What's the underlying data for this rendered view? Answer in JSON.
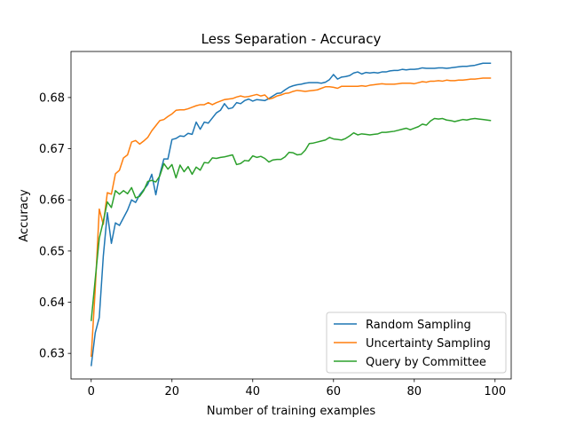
{
  "chart_data": {
    "type": "line",
    "title": "Less Separation - Accuracy",
    "xlabel": "Number of training examples",
    "ylabel": "Accuracy",
    "xlim": [
      -5,
      104
    ],
    "ylim": [
      0.625,
      0.689
    ],
    "xticks": [
      0,
      20,
      40,
      60,
      80,
      100
    ],
    "yticks": [
      0.63,
      0.64,
      0.65,
      0.66,
      0.67,
      0.68
    ],
    "grid": false,
    "legend_position": "lower-right",
    "x": [
      0,
      1,
      2,
      3,
      4,
      5,
      6,
      7,
      8,
      9,
      10,
      11,
      12,
      13,
      14,
      15,
      16,
      17,
      18,
      19,
      20,
      21,
      22,
      23,
      24,
      25,
      26,
      27,
      28,
      29,
      30,
      31,
      32,
      33,
      34,
      35,
      36,
      37,
      38,
      39,
      40,
      41,
      42,
      43,
      44,
      45,
      46,
      47,
      48,
      49,
      50,
      51,
      52,
      53,
      54,
      55,
      56,
      57,
      58,
      59,
      60,
      61,
      62,
      63,
      64,
      65,
      66,
      67,
      68,
      69,
      70,
      71,
      72,
      73,
      74,
      75,
      76,
      77,
      78,
      79,
      80,
      81,
      82,
      83,
      84,
      85,
      86,
      87,
      88,
      89,
      90,
      91,
      92,
      93,
      94,
      95,
      96,
      97,
      98,
      99
    ],
    "series": [
      {
        "name": "Random Sampling",
        "color": "#1f77b4",
        "values": [
          0.6275,
          0.634,
          0.637,
          0.649,
          0.6575,
          0.6515,
          0.6555,
          0.655,
          0.6565,
          0.658,
          0.66,
          0.6595,
          0.661,
          0.662,
          0.663,
          0.665,
          0.661,
          0.665,
          0.668,
          0.668,
          0.6718,
          0.672,
          0.6725,
          0.6724,
          0.673,
          0.6728,
          0.6752,
          0.6738,
          0.6752,
          0.675,
          0.676,
          0.677,
          0.6775,
          0.6788,
          0.6778,
          0.678,
          0.679,
          0.6788,
          0.6794,
          0.6797,
          0.6793,
          0.6796,
          0.6795,
          0.6794,
          0.6798,
          0.6803,
          0.6808,
          0.6809,
          0.6815,
          0.682,
          0.6823,
          0.6825,
          0.6826,
          0.6828,
          0.6829,
          0.6829,
          0.6829,
          0.6828,
          0.683,
          0.6835,
          0.6845,
          0.6836,
          0.684,
          0.6841,
          0.6843,
          0.6848,
          0.685,
          0.6846,
          0.6849,
          0.6848,
          0.6849,
          0.6848,
          0.685,
          0.685,
          0.6852,
          0.6853,
          0.6853,
          0.6855,
          0.6854,
          0.6855,
          0.6855,
          0.6856,
          0.6858,
          0.6857,
          0.6857,
          0.6857,
          0.6858,
          0.6858,
          0.6857,
          0.6858,
          0.6859,
          0.686,
          0.6861,
          0.6861,
          0.6862,
          0.6863,
          0.6865,
          0.6867,
          0.6867,
          0.6867
        ]
      },
      {
        "name": "Uncertainty Sampling",
        "color": "#ff7f0e",
        "values": [
          0.6293,
          0.6425,
          0.6582,
          0.6552,
          0.6614,
          0.6611,
          0.6651,
          0.6658,
          0.6682,
          0.6688,
          0.6713,
          0.6716,
          0.6709,
          0.6715,
          0.6722,
          0.6735,
          0.6745,
          0.6755,
          0.6757,
          0.6763,
          0.6768,
          0.6775,
          0.6776,
          0.6776,
          0.6778,
          0.6781,
          0.6784,
          0.6786,
          0.6786,
          0.679,
          0.6786,
          0.679,
          0.6793,
          0.6796,
          0.6797,
          0.6798,
          0.6801,
          0.6803,
          0.6801,
          0.6802,
          0.6804,
          0.6806,
          0.6803,
          0.6805,
          0.6797,
          0.6799,
          0.6803,
          0.6805,
          0.6808,
          0.6809,
          0.6812,
          0.6814,
          0.6813,
          0.6812,
          0.6813,
          0.6814,
          0.6815,
          0.6818,
          0.6821,
          0.6821,
          0.682,
          0.6818,
          0.6822,
          0.6822,
          0.6822,
          0.6822,
          0.6822,
          0.6823,
          0.6822,
          0.6824,
          0.6825,
          0.6826,
          0.6827,
          0.6826,
          0.6826,
          0.6826,
          0.6827,
          0.6828,
          0.6828,
          0.6828,
          0.6827,
          0.6829,
          0.6831,
          0.683,
          0.6832,
          0.6832,
          0.6833,
          0.6832,
          0.6834,
          0.6833,
          0.6833,
          0.6834,
          0.6834,
          0.6835,
          0.6836,
          0.6836,
          0.6837,
          0.6838,
          0.6838,
          0.6838
        ]
      },
      {
        "name": "Query by Committee",
        "color": "#2ca02c",
        "values": [
          0.6363,
          0.6445,
          0.6525,
          0.6558,
          0.6596,
          0.6585,
          0.6618,
          0.6611,
          0.6618,
          0.6612,
          0.6624,
          0.6604,
          0.6607,
          0.6618,
          0.6636,
          0.6638,
          0.6635,
          0.6647,
          0.6671,
          0.666,
          0.6669,
          0.6643,
          0.6668,
          0.6655,
          0.6665,
          0.665,
          0.6664,
          0.6658,
          0.6673,
          0.6672,
          0.6682,
          0.6681,
          0.6683,
          0.6684,
          0.6686,
          0.6688,
          0.6669,
          0.6671,
          0.6677,
          0.6676,
          0.6686,
          0.6683,
          0.6685,
          0.6681,
          0.6674,
          0.6678,
          0.6679,
          0.6679,
          0.6684,
          0.6693,
          0.6692,
          0.6688,
          0.6689,
          0.6697,
          0.671,
          0.6711,
          0.6713,
          0.6715,
          0.6717,
          0.6722,
          0.6719,
          0.6718,
          0.6717,
          0.672,
          0.6725,
          0.6731,
          0.6727,
          0.6729,
          0.6728,
          0.6727,
          0.6728,
          0.6729,
          0.6732,
          0.6732,
          0.6733,
          0.6734,
          0.6736,
          0.6738,
          0.674,
          0.6737,
          0.674,
          0.6743,
          0.6748,
          0.6746,
          0.6754,
          0.6759,
          0.6758,
          0.6759,
          0.6756,
          0.6755,
          0.6753,
          0.6755,
          0.6757,
          0.6756,
          0.6758,
          0.6759,
          0.6758,
          0.6757,
          0.6756,
          0.6755
        ]
      }
    ]
  }
}
